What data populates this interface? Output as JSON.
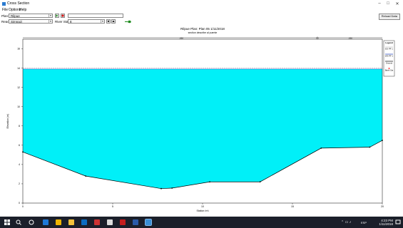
{
  "window": {
    "title": "Cross Section",
    "controls": {
      "minimize": "–",
      "maximize": "□",
      "close": "✕"
    }
  },
  "menu": {
    "items": [
      "File",
      "Options",
      "Help"
    ]
  },
  "toolbar": {
    "plan_label": "Plan:",
    "plan_value": "Rilpue",
    "reach_label": "Reach:",
    "reach_value": "Simnazi",
    "river_sta_label": "River Sta.:",
    "river_sta_value": "8",
    "reload_label": "Reload Data"
  },
  "chart_data": {
    "type": "area",
    "title": "Rilpue    Plan: Plan 05    1/11/2018",
    "subtitle": "section describe al puente",
    "xlabel": "Station (m)",
    "ylabel": "Elevation (m)",
    "xlim": [
      0,
      20
    ],
    "ylim": [
      0,
      17
    ],
    "x_ticks": [
      "0",
      "5",
      "10",
      "15",
      "20"
    ],
    "y_ticks": [
      "0",
      "2",
      "4",
      "6",
      "8",
      "10",
      "12",
      "14",
      "16"
    ],
    "n_values": [
      ".030",
      ".030"
    ],
    "water_surface_elevation": 13.9,
    "upper_dashed_line": 14.0,
    "ground": {
      "x": [
        0.0,
        3.5,
        7.7,
        8.3,
        10.4,
        13.2,
        16.6,
        19.3,
        20.0
      ],
      "y": [
        5.3,
        2.8,
        1.5,
        1.55,
        2.2,
        2.2,
        5.7,
        5.8,
        6.5
      ]
    },
    "legend": {
      "title": "Legend",
      "entries": [
        "EG PF 1",
        "WS PF 1",
        "Ground",
        "Bank Sta"
      ],
      "colors": [
        "#c0c0c0",
        "#1f3fbf",
        "#000000",
        "#ff0000"
      ],
      "placement": "top-right"
    },
    "fill_color": "#00f0f8",
    "grid": false
  },
  "taskbar": {
    "time": "4:23 PM",
    "date": "1/11/2018",
    "lang": "ESP"
  }
}
